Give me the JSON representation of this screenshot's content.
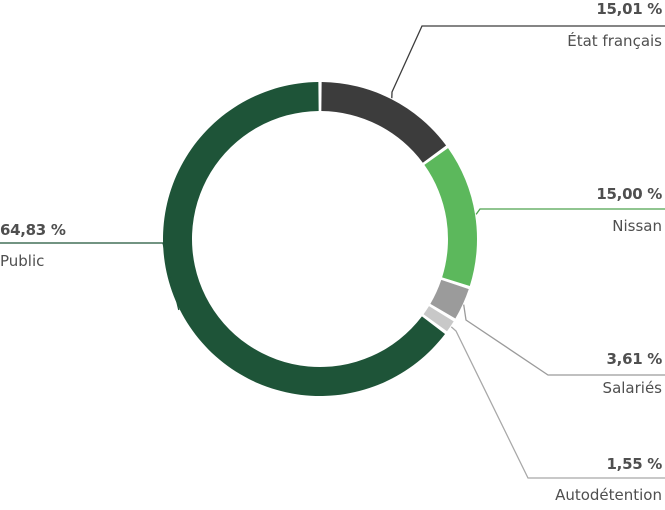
{
  "chart_data": {
    "type": "pie",
    "variant": "donut",
    "slices": [
      {
        "label": "État français",
        "value_text": "15,01 %",
        "value": 15.01,
        "color": "#3c3c3c",
        "line_color": "#3c3c3c"
      },
      {
        "label": "Nissan",
        "value_text": "15,00 %",
        "value": 15.0,
        "color": "#5cb85c",
        "line_color": "#4ea24e"
      },
      {
        "label": "Salariés",
        "value_text": "3,61 %",
        "value": 3.61,
        "color": "#9b9b9b",
        "line_color": "#9b9b9b"
      },
      {
        "label": "Autodétention",
        "value_text": "1,55 %",
        "value": 1.55,
        "color": "#c8c8c8",
        "line_color": "#a8a8a8"
      },
      {
        "label": "Public",
        "value_text": "64,83 %",
        "value": 64.83,
        "color": "#1e5438",
        "line_color": "#1e5438"
      }
    ],
    "start_angle_deg": 0,
    "direction": "clockwise"
  }
}
